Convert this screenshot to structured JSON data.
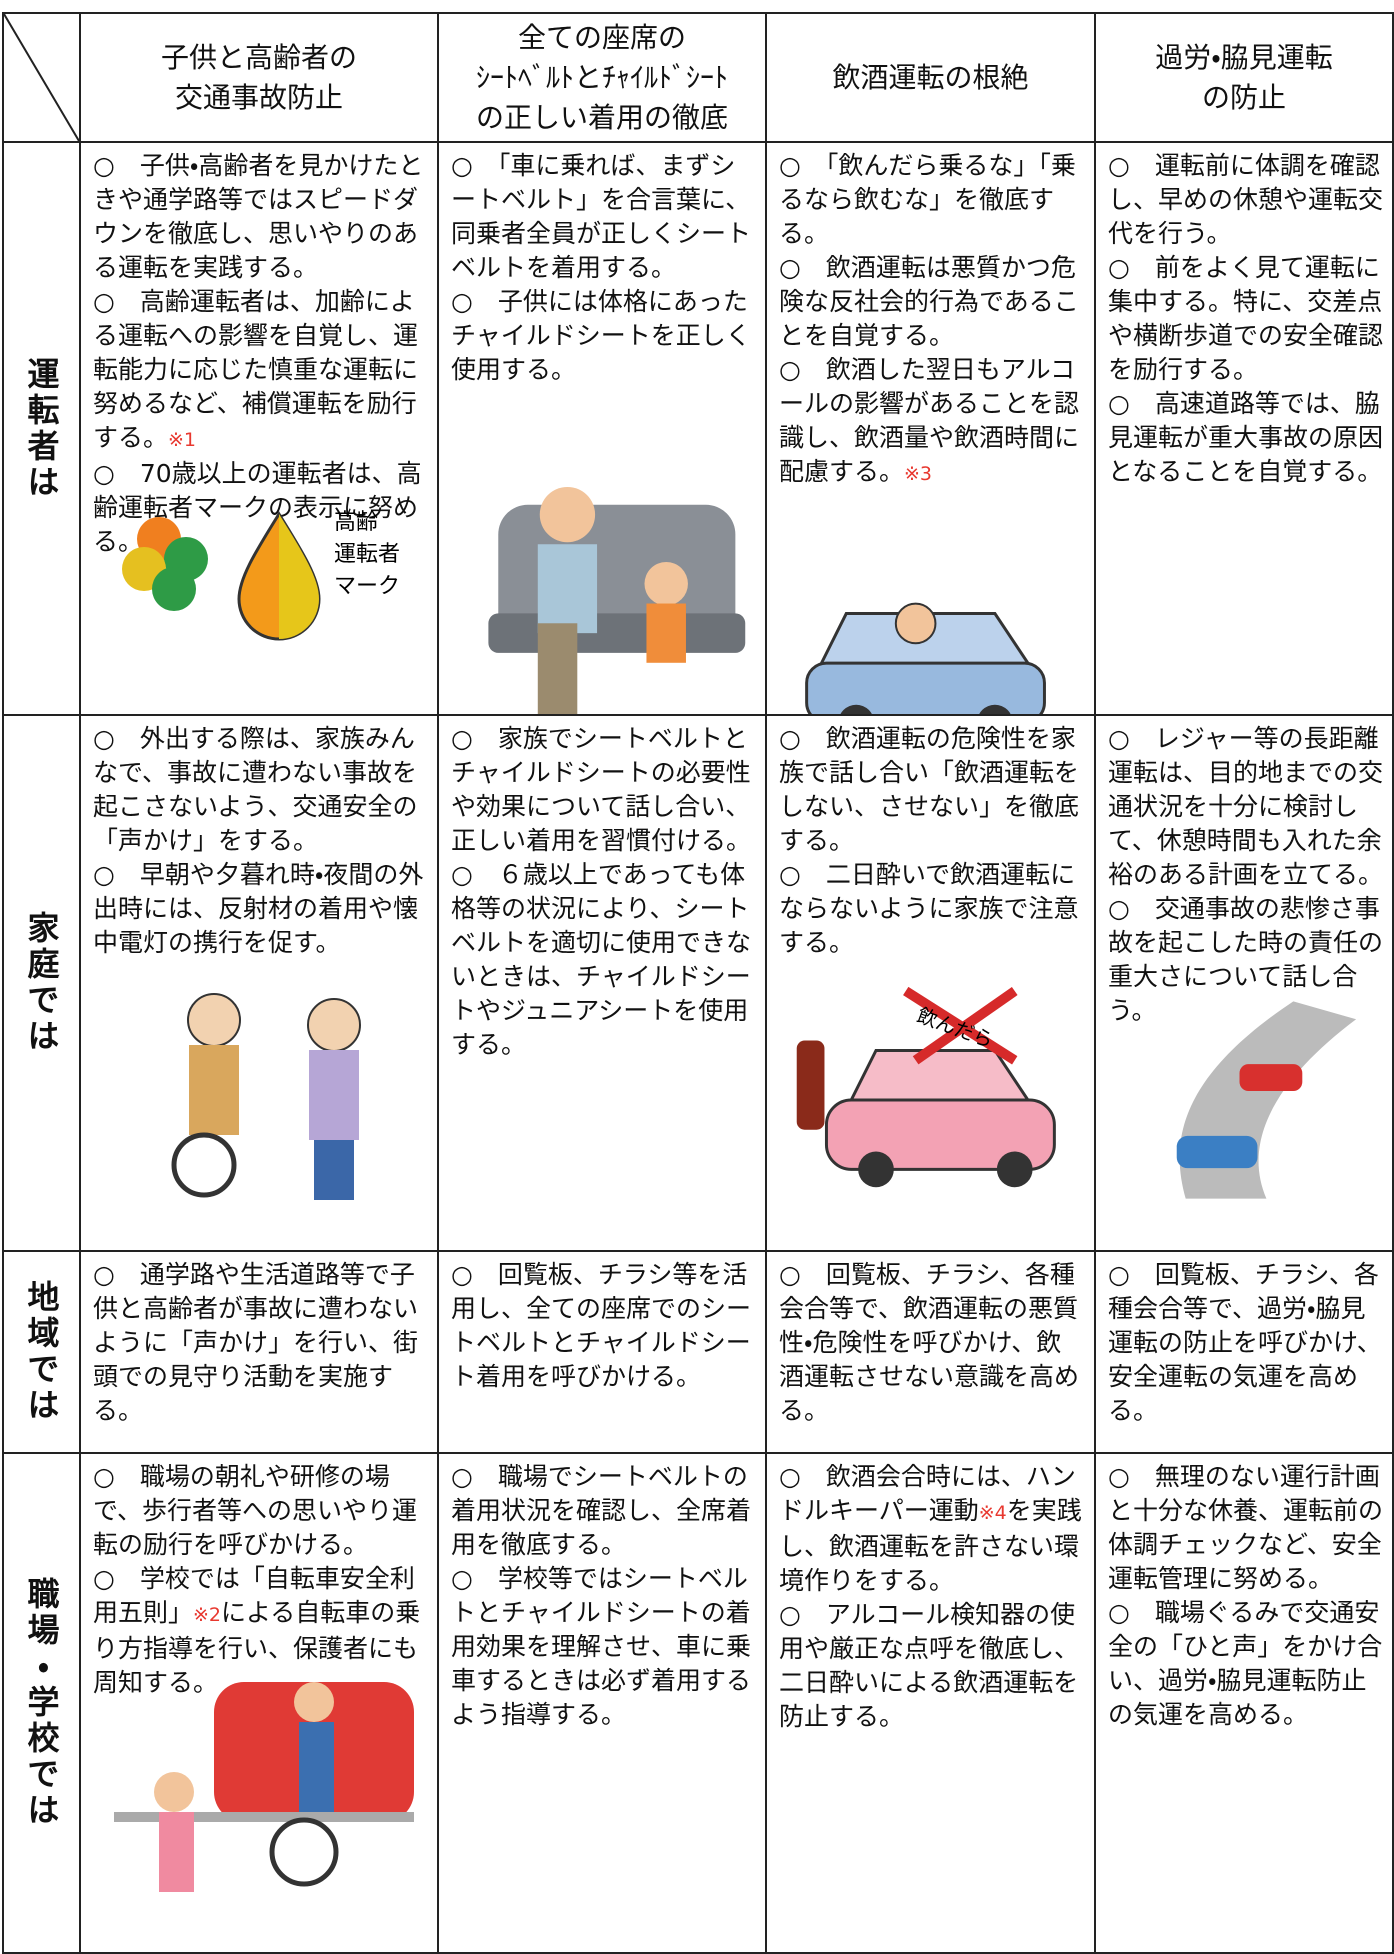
{
  "header": {
    "columns": [
      [
        "子供と高齢者の",
        "交通事故防止"
      ],
      [
        "全ての座席の",
        "ｼｰﾄﾍﾞﾙﾄとﾁｬｲﾙﾄﾞｼｰﾄ",
        "の正しい着用の徹底"
      ],
      [
        "飲酒運転の根絶"
      ],
      [
        "過労・脇見運転",
        "の防止"
      ]
    ]
  },
  "rows": [
    {
      "label": "運転者は",
      "cells": [
        {
          "items": [
            "○　子供・高齢者を見かけたときや通学路等ではスピードダウンを徹底し、思いやりのある運転を実践する。",
            {
              "before": "○　高齢運転者は、加齢による運転への影響を自覚し、運転能力に応じた慎重な運転に努めるなど、補償運転を励行する。",
              "note": "※1"
            },
            "○　70歳以上の運転者は、高齢運転者マークの表示に努める。"
          ],
          "caption": [
            "高齢",
            "運転者",
            "マーク"
          ]
        },
        {
          "items": [
            "○　「車に乗れば、まずシートベルト」を合言葉に、同乗者全員が正しくシートベルトを着用する。",
            "○　子供には体格にあったチャイルドシートを正しく使用する。"
          ]
        },
        {
          "items": [
            "○　「飲んだら乗るな」「乗るなら飲むな」を徹底する。",
            "○　飲酒運転は悪質かつ危険な反社会的行為であることを自覚する。",
            {
              "before": "○　飲酒した翌日もアルコールの影響があることを認識し、飲酒量や飲酒時間に配慮する。",
              "note": "※3"
            }
          ]
        },
        {
          "items": [
            "○　運転前に体調を確認し、早めの休憩や運転交代を行う。",
            "○　前をよく見て運転に集中する。特に、交差点や横断歩道での安全確認を励行する。",
            "○　高速道路等では、脇見運転が重大事故の原因となることを自覚する。"
          ]
        }
      ]
    },
    {
      "label": "家庭では",
      "cells": [
        {
          "items": [
            "○　外出する際は、家族みんなで、事故に遭わない事故を起こさないよう、交通安全の「声かけ」をする。",
            "○　早朝や夕暮れ時・夜間の外出時には、反射材の着用や懐中電灯の携行を促す。"
          ]
        },
        {
          "items": [
            "○　家族でシートベルトとチャイルドシートの必要性や効果について話し合い、正しい着用を習慣付ける。",
            "○　６歳以上であっても体格等の状況により、シートベルトを適切に使用できないときは、チャイルドシートやジュニアシートを使用する。"
          ]
        },
        {
          "items": [
            "○　飲酒運転の危険性を家族で話し合い「飲酒運転をしない、させない」を徹底する。",
            "○　二日酔いで飲酒運転にならないように家族で注意する。"
          ],
          "caption": [
            "飲んだら"
          ]
        },
        {
          "items": [
            "○　レジャー等の長距離運転は、目的地までの交通状況を十分に検討して、休憩時間も入れた余裕のある計画を立てる。",
            "○　交通事故の悲惨さ事故を起こした時の責任の重大さについて話し合う。"
          ]
        }
      ]
    },
    {
      "label": "地域では",
      "cells": [
        {
          "items": [
            "○　通学路や生活道路等で子供と高齢者が事故に遭わないように「声かけ」を行い、街頭での見守り活動を実施する。"
          ]
        },
        {
          "items": [
            "○　回覧板、チラシ等を活用し、全ての座席でのシートベルトとチャイルドシート着用を呼びかける。"
          ]
        },
        {
          "items": [
            "○　回覧板、チラシ、各種会合等で、飲酒運転の悪質性・危険性を呼びかけ、飲酒運転させない意識を高める。"
          ]
        },
        {
          "items": [
            "○　回覧板、チラシ、各種会合等で、過労・脇見運転の防止を呼びかけ、安全運転の気運を高める。"
          ]
        }
      ]
    },
    {
      "label": "職場・学校では",
      "cells": [
        {
          "items": [
            "○　職場の朝礼や研修の場で、歩行者等への思いやり運転の励行を呼びかける。",
            {
              "before": "○　学校では「自転車安全利用五則」",
              "note": "※2",
              "after": "による自転車の乗り方指導を行い、保護者にも周知する。"
            }
          ]
        },
        {
          "items": [
            "○　職場でシートベルトの着用状況を確認し、全席着用を徹底する。",
            "○　学校等ではシートベルトとチャイルドシートの着用効果を理解させ、車に乗車するときは必ず着用するよう指導する。"
          ]
        },
        {
          "items": [
            {
              "before": "○　飲酒会合時には、ハンドルキーパー運動",
              "note": "※4",
              "after": "を実践し、飲酒運転を許さない環境作りをする。"
            },
            "○　アルコール検知器の使用や厳正な点呼を徹底し、二日酔いによる飲酒運転を防止する。"
          ]
        },
        {
          "items": [
            "○　無理のない運行計画と十分な休養、運転前の体調チェックなど、安全運転管理に努める。",
            "○　職場ぐるみで交通安全の「ひと声」をかけ合い、過労・脇見運転防止の気運を高める。"
          ]
        }
      ]
    }
  ]
}
